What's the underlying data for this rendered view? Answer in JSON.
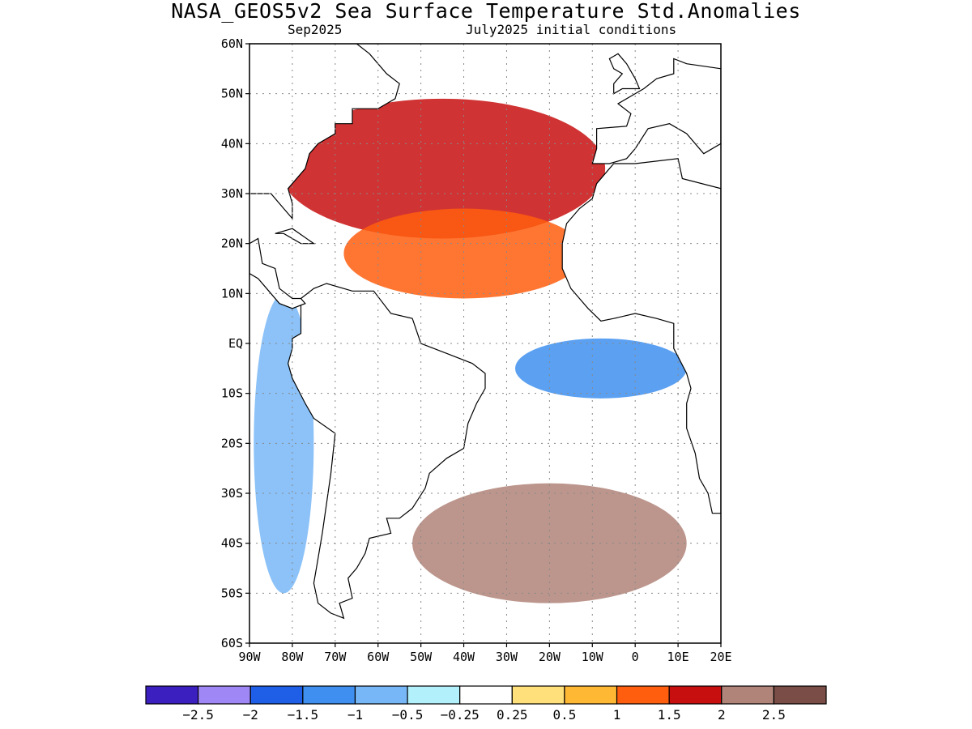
{
  "title": "NASA_GEOS5v2 Sea Surface Temperature Std.Anomalies",
  "subtitle_left": "Sep2025",
  "subtitle_right": "July2025 initial conditions",
  "map": {
    "lon_range": [
      -90,
      20
    ],
    "lat_range": [
      -60,
      60
    ],
    "lat_ticks": [
      {
        "value": 60,
        "label": "60N"
      },
      {
        "value": 50,
        "label": "50N"
      },
      {
        "value": 40,
        "label": "40N"
      },
      {
        "value": 30,
        "label": "30N"
      },
      {
        "value": 20,
        "label": "20N"
      },
      {
        "value": 10,
        "label": "10N"
      },
      {
        "value": 0,
        "label": "EQ"
      },
      {
        "value": -10,
        "label": "10S"
      },
      {
        "value": -20,
        "label": "20S"
      },
      {
        "value": -30,
        "label": "30S"
      },
      {
        "value": -40,
        "label": "40S"
      },
      {
        "value": -50,
        "label": "50S"
      },
      {
        "value": -60,
        "label": "60S"
      }
    ],
    "lon_ticks": [
      {
        "value": -90,
        "label": "90W"
      },
      {
        "value": -80,
        "label": "80W"
      },
      {
        "value": -70,
        "label": "70W"
      },
      {
        "value": -60,
        "label": "60W"
      },
      {
        "value": -50,
        "label": "50W"
      },
      {
        "value": -40,
        "label": "40W"
      },
      {
        "value": -30,
        "label": "30W"
      },
      {
        "value": -20,
        "label": "20W"
      },
      {
        "value": -10,
        "label": "10W"
      },
      {
        "value": 0,
        "label": "0"
      },
      {
        "value": 10,
        "label": "10E"
      },
      {
        "value": 20,
        "label": "20E"
      }
    ],
    "grid": true,
    "anomaly_regions": [
      {
        "name": "north-atlantic-warm",
        "lon": -45,
        "lat": 35,
        "rx": 38,
        "ry": 14,
        "level": 2
      },
      {
        "name": "tropical-north-atlantic-warm",
        "lon": -40,
        "lat": 18,
        "rx": 28,
        "ry": 9,
        "level": 1.5
      },
      {
        "name": "gulf-of-guinea-cool",
        "lon": -8,
        "lat": -5,
        "rx": 20,
        "ry": 6,
        "level": -1
      },
      {
        "name": "south-atlantic-warm",
        "lon": -20,
        "lat": -40,
        "rx": 32,
        "ry": 12,
        "level": 2.5
      },
      {
        "name": "southeast-pacific-mixed",
        "lon": -82,
        "lat": -20,
        "rx": 7,
        "ry": 30,
        "level": -0.5
      }
    ]
  },
  "colorbar": {
    "colors": [
      "#3b1fbf",
      "#9f88f5",
      "#1f5fe8",
      "#3e8fef",
      "#78b7f7",
      "#b2f0fb",
      "#ffffff",
      "#ffe07a",
      "#ffb833",
      "#ff5e0f",
      "#c80f0f",
      "#b08479",
      "#7a4e46"
    ],
    "labels": [
      "−2.5",
      "−2",
      "−1.5",
      "−1",
      "−0.5",
      "−0.25",
      "0.25",
      "0.5",
      "1",
      "1.5",
      "2",
      "2.5"
    ]
  }
}
